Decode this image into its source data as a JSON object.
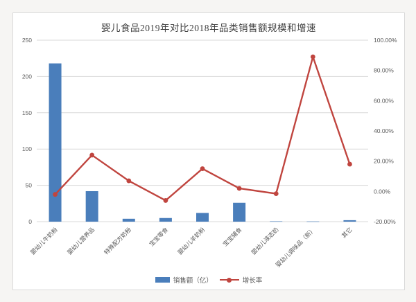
{
  "page": {
    "title": "婴儿食品2019年对比2018年品类销售额规模和增速"
  },
  "legend": {
    "sales_label": "销售额（亿）",
    "growth_label": "增长率"
  },
  "colors": {
    "bar": "#4a7ebb",
    "line": "#c0453f",
    "grid": "#d9d9d9",
    "tick_text": "#595959",
    "title_text": "#3f3f3f",
    "panel_border": "#d9d9d9",
    "panel_bg": "#ffffff"
  },
  "chart_data": {
    "type": "bar+line combo",
    "title": "婴儿食品2019年对比2018年品类销售额规模和增速",
    "categories": [
      "婴幼儿牛奶粉",
      "婴幼儿营养品",
      "特殊配方奶粉",
      "宝宝零食",
      "婴幼儿羊奶粉",
      "宝宝辅食",
      "婴幼儿液态奶",
      "婴幼儿调味品（新）",
      "其它"
    ],
    "series": [
      {
        "name": "销售额（亿）",
        "type": "bar",
        "axis": "left",
        "values": [
          218,
          42,
          4,
          5,
          12,
          26,
          0.5,
          0.3,
          2
        ]
      },
      {
        "name": "增长率",
        "type": "line",
        "axis": "right",
        "unit": "%",
        "values": [
          -2,
          24,
          7,
          -6,
          15,
          2,
          -1.5,
          89,
          18
        ]
      }
    ],
    "left_axis": {
      "min": 0,
      "max": 250,
      "step": 50,
      "ticks": [
        "0",
        "50",
        "100",
        "150",
        "200",
        "250"
      ]
    },
    "right_axis": {
      "min": -20,
      "max": 100,
      "step": 20,
      "ticks": [
        "-20.00%",
        "0.00%",
        "20.00%",
        "40.00%",
        "60.00%",
        "80.00%",
        "100.00%"
      ]
    },
    "grid": "horizontal gridlines at left-axis steps",
    "legend_position": "bottom-center",
    "category_label_rotation": -45
  }
}
